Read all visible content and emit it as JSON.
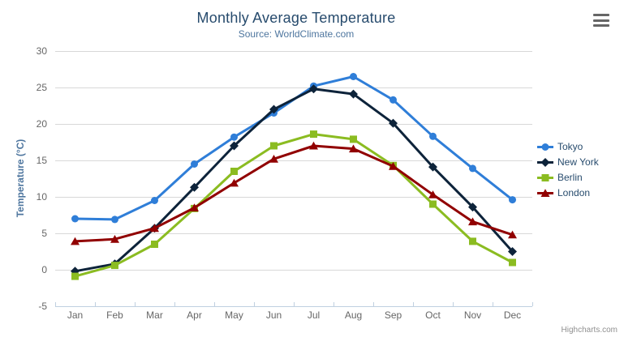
{
  "chart_data": {
    "type": "line",
    "title": "Monthly Average Temperature",
    "subtitle": "Source: WorldClimate.com",
    "ylabel": "Temperature (°C)",
    "xlabel": "",
    "categories": [
      "Jan",
      "Feb",
      "Mar",
      "Apr",
      "May",
      "Jun",
      "Jul",
      "Aug",
      "Sep",
      "Oct",
      "Nov",
      "Dec"
    ],
    "series": [
      {
        "name": "Tokyo",
        "color": "#2f7ed8",
        "marker": "circle",
        "values": [
          7.0,
          6.9,
          9.5,
          14.5,
          18.2,
          21.5,
          25.2,
          26.5,
          23.3,
          18.3,
          13.9,
          9.6
        ]
      },
      {
        "name": "New York",
        "color": "#0d233a",
        "marker": "diamond",
        "values": [
          -0.2,
          0.8,
          5.7,
          11.3,
          17.0,
          22.0,
          24.8,
          24.1,
          20.1,
          14.1,
          8.6,
          2.5
        ]
      },
      {
        "name": "Berlin",
        "color": "#8bbc21",
        "marker": "square",
        "values": [
          -0.9,
          0.6,
          3.5,
          8.4,
          13.5,
          17.0,
          18.6,
          17.9,
          14.3,
          9.0,
          3.9,
          1.0
        ]
      },
      {
        "name": "London",
        "color": "#910000",
        "marker": "triangle",
        "values": [
          3.9,
          4.2,
          5.7,
          8.5,
          11.9,
          15.2,
          17.0,
          16.6,
          14.2,
          10.3,
          6.6,
          4.8
        ]
      }
    ],
    "ylim": [
      -5,
      30
    ],
    "yticks": [
      -5,
      0,
      5,
      10,
      15,
      20,
      25,
      30
    ],
    "grid": true,
    "legend_position": "right",
    "colors": {
      "grid": "#d8d8d8",
      "axis_line": "#c0d0e0",
      "axis_label": "#666666",
      "title": "#274b6d",
      "subtitle": "#4d759e",
      "legend_text": "#274b6d"
    }
  },
  "menu": {
    "icon": "hamburger-icon"
  },
  "credits": {
    "label": "Highcharts.com"
  }
}
